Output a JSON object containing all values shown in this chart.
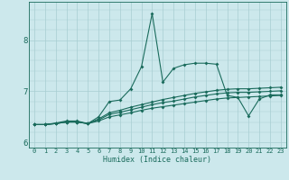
{
  "xlabel": "Humidex (Indice chaleur)",
  "bg_color": "#cce8ec",
  "line_color": "#1a6b5c",
  "grid_color": "#a8cdd1",
  "xlim": [
    -0.5,
    23.5
  ],
  "ylim": [
    5.9,
    8.75
  ],
  "xticks": [
    0,
    1,
    2,
    3,
    4,
    5,
    6,
    7,
    8,
    9,
    10,
    11,
    12,
    13,
    14,
    15,
    16,
    17,
    18,
    19,
    20,
    21,
    22,
    23
  ],
  "yticks": [
    6,
    7,
    8
  ],
  "series": [
    [
      6.35,
      6.35,
      6.38,
      6.42,
      6.42,
      6.37,
      6.5,
      6.8,
      6.83,
      7.05,
      7.48,
      8.52,
      7.18,
      7.45,
      7.52,
      7.55,
      7.55,
      7.53,
      6.92,
      6.88,
      6.52,
      6.85,
      6.93,
      6.93
    ],
    [
      6.35,
      6.35,
      6.37,
      6.4,
      6.4,
      6.37,
      6.42,
      6.5,
      6.54,
      6.58,
      6.63,
      6.67,
      6.7,
      6.73,
      6.76,
      6.79,
      6.82,
      6.85,
      6.87,
      6.88,
      6.89,
      6.9,
      6.91,
      6.92
    ],
    [
      6.35,
      6.35,
      6.37,
      6.4,
      6.4,
      6.37,
      6.44,
      6.55,
      6.59,
      6.64,
      6.69,
      6.74,
      6.78,
      6.81,
      6.85,
      6.89,
      6.92,
      6.95,
      6.97,
      6.98,
      6.98,
      6.99,
      7.0,
      7.01
    ],
    [
      6.35,
      6.35,
      6.37,
      6.4,
      6.4,
      6.37,
      6.46,
      6.58,
      6.63,
      6.69,
      6.74,
      6.79,
      6.84,
      6.88,
      6.92,
      6.96,
      6.99,
      7.02,
      7.04,
      7.05,
      7.05,
      7.06,
      7.07,
      7.08
    ]
  ],
  "markersize": 2.0,
  "linewidth": 0.8
}
